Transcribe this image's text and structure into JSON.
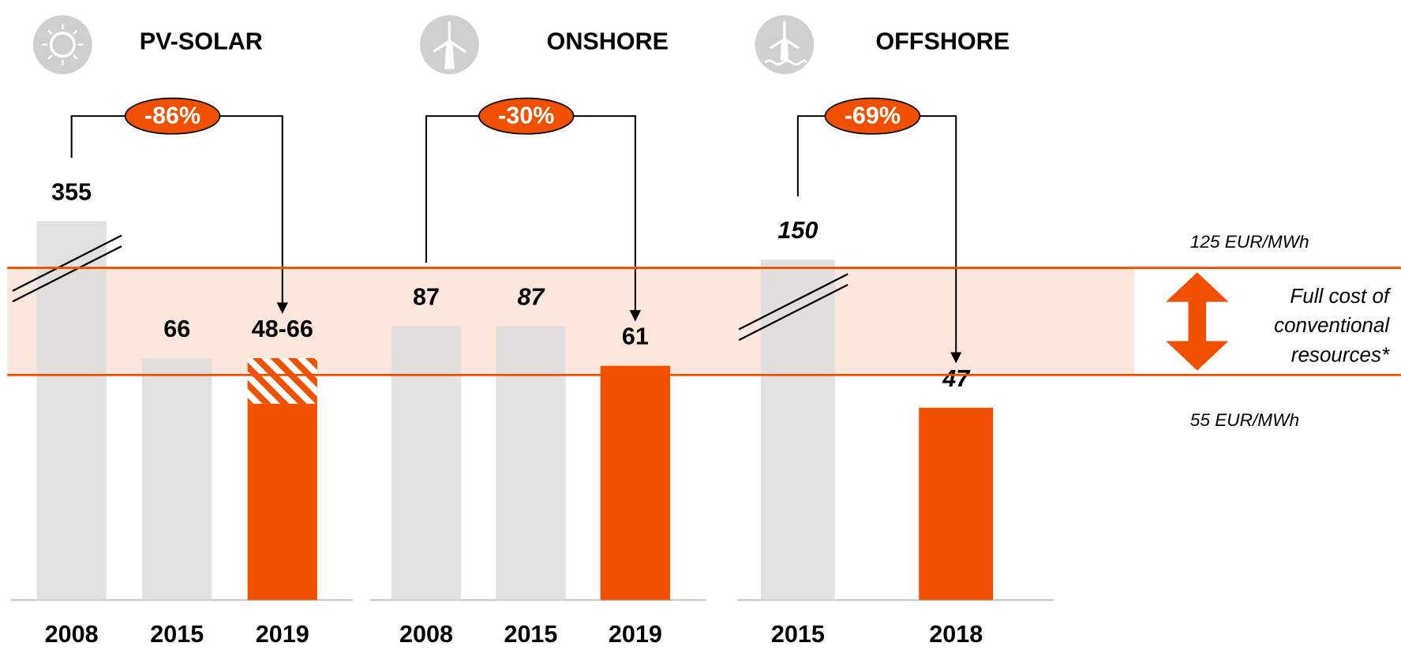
{
  "chart_data": {
    "type": "bar",
    "band": {
      "lower": 55,
      "upper": 125,
      "upper_label": "125 EUR/MWh",
      "lower_label": "55 EUR/MWh",
      "label_lines": [
        "Full cost of",
        "conventional",
        "resources*"
      ],
      "color": "#f05000",
      "fill": "#fde6dc"
    },
    "panels": [
      {
        "title": "PV-SOLAR",
        "change_label": "-86%",
        "categories": [
          "2008",
          "2015",
          "2019"
        ],
        "values": [
          355,
          66,
          48
        ],
        "value_labels": [
          "355",
          "66",
          "48-66"
        ],
        "range_high": [
          null,
          null,
          66
        ],
        "colors": [
          "#dcdcdc",
          "#dcdcdc",
          "#f05000"
        ],
        "italic": [
          false,
          false,
          false
        ],
        "broken": [
          true,
          false,
          false
        ]
      },
      {
        "title": "ONSHORE",
        "change_label": "-30%",
        "categories": [
          "2008",
          "2015",
          "2019"
        ],
        "values": [
          87,
          87,
          61
        ],
        "colors": [
          "#dcdcdc",
          "#dcdcdc",
          "#f05000"
        ],
        "italic": [
          false,
          true,
          false
        ],
        "broken": [
          false,
          false,
          false
        ]
      },
      {
        "title": "OFFSHORE",
        "change_label": "-69%",
        "categories": [
          "2015",
          "2018"
        ],
        "values": [
          150,
          47
        ],
        "colors": [
          "#dcdcdc",
          "#f05000"
        ],
        "italic": [
          true,
          true
        ],
        "broken": [
          true,
          false
        ]
      }
    ]
  }
}
